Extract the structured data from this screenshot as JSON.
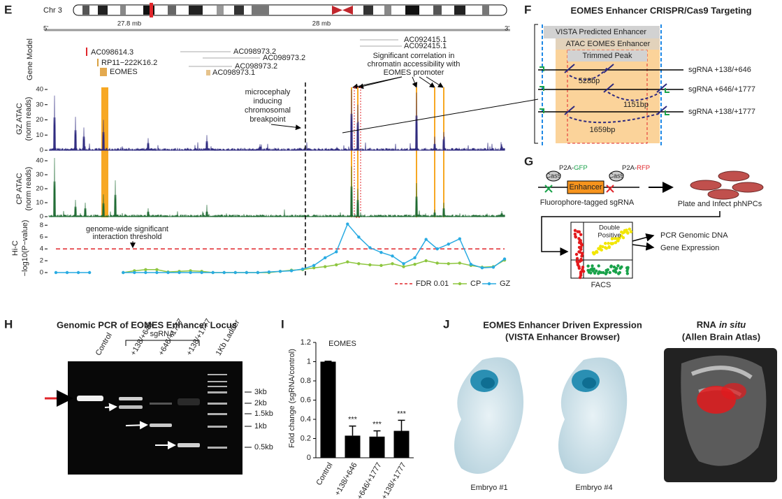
{
  "panel_e": {
    "letter": "E",
    "chromosome": "Chr 3",
    "scale": [
      "27.8 mb",
      "28 mb"
    ],
    "ends": [
      "5'",
      "3'"
    ],
    "gene_model_label": "Gene Model",
    "genes": [
      "AC098614.3",
      "RP11−222K16.2",
      "EOMES",
      "AC098973.2",
      "AC098973.2",
      "AC098973.2",
      "AC098973.1",
      "AC092415.1",
      "AC092415.1"
    ],
    "correlation_note": [
      "Significant correlation in",
      "chromatin accessibility with",
      "EOMES promoter"
    ],
    "breakpoint_note": [
      "microcephaly",
      "inducing",
      "chromosomal",
      "breakpoint"
    ],
    "tracks": [
      {
        "label": [
          "GZ ATAC",
          "(norm reads)"
        ],
        "color": "#2e2a7f"
      },
      {
        "label": [
          "CP ATAC",
          "(norm reads)"
        ],
        "color": "#1f6b33"
      }
    ],
    "atac_yticks": [
      0,
      10,
      20,
      30,
      40
    ]
  },
  "chart_data": [
    {
      "type": "line",
      "ylabel": [
        "Hi-C",
        "−log10(P−value)"
      ],
      "categories": [
        null,
        null,
        null,
        null,
        null,
        null,
        null,
        null,
        null,
        null,
        null,
        null,
        null,
        null,
        null,
        null,
        null,
        null,
        null,
        null,
        null,
        null,
        null,
        null,
        null,
        null,
        null,
        null,
        null,
        null,
        null,
        null,
        null,
        null,
        null,
        null,
        null,
        null,
        null,
        null,
        null
      ],
      "series": [
        {
          "name": "CP",
          "color": "#8dc63f",
          "values": [
            null,
            null,
            null,
            null,
            null,
            null,
            0,
            0.3,
            0.5,
            0.5,
            0.1,
            0.2,
            0.3,
            0.2,
            0,
            0,
            0,
            0,
            0,
            0,
            0.2,
            0.4,
            0.5,
            0.8,
            1,
            1.3,
            1.8,
            1.5,
            1.3,
            1.2,
            1.5,
            1,
            1.4,
            2,
            1.6,
            1.5,
            1.6,
            1.2,
            0.9,
            1,
            2.1
          ]
        },
        {
          "name": "GZ",
          "color": "#29abe2",
          "values": [
            0,
            0,
            0,
            0,
            null,
            null,
            0,
            0,
            0,
            0,
            0,
            0,
            0,
            0,
            0,
            0,
            0,
            0,
            0,
            0.1,
            0.2,
            0.3,
            0.6,
            1.2,
            2.5,
            3.5,
            8.2,
            6,
            4.2,
            3.4,
            2.8,
            1.5,
            2.5,
            5.6,
            4,
            4.8,
            5.7,
            1.4,
            0.8,
            0.9,
            2.3
          ]
        }
      ],
      "threshold": {
        "value": 4,
        "label": "FDR 0.01",
        "color": "#e0262b"
      },
      "annotation": [
        "genome-wide significant",
        "interaction threshold"
      ],
      "ylim": [
        0,
        8.5
      ],
      "yticks": [
        0,
        2,
        4,
        6,
        8
      ]
    },
    {
      "type": "bar",
      "title": "EOMES",
      "ylabel": "Fold change (sgRNA/control)",
      "categories": [
        "Control",
        "+138/+646",
        "+646/+1777",
        "+138/+1777"
      ],
      "values": [
        1,
        0.23,
        0.22,
        0.28
      ],
      "errors": [
        0.005,
        0.1,
        0.06,
        0.11
      ],
      "annotations": [
        null,
        "***",
        "***",
        "***"
      ],
      "color": "#000000",
      "ylim": [
        0,
        1.2
      ],
      "yticks": [
        0,
        0.2,
        0.4,
        0.6,
        0.8,
        1,
        1.2
      ]
    }
  ],
  "panel_f": {
    "letter": "F",
    "title": "EOMES Enhancer CRISPR/Cas9 Targeting",
    "regions": [
      "VISTA Predicted Enhancer",
      "ATAC EOMES Enhancer",
      "Trimmed Peak"
    ],
    "guides": [
      {
        "label": "sgRNA +138/+646",
        "deletion": "528bp"
      },
      {
        "label": "sgRNA +646/+1777",
        "deletion": "1151bp"
      },
      {
        "label": "sgRNA +138/+1777",
        "deletion": "1659bp"
      }
    ]
  },
  "panel_g": {
    "letter": "G",
    "cas9": [
      "Cas9",
      "Cas9"
    ],
    "tags": [
      {
        "prefix": "P2A-",
        "name": "GFP"
      },
      {
        "prefix": "P2A-",
        "name": "RFP"
      }
    ],
    "enhancer": "Enhancer",
    "step1": "Fluorophore-tagged sgRNA",
    "step2": "Plate and Infect phNPCs",
    "facs": "FACS",
    "gate": [
      "Double",
      "Positive"
    ],
    "outputs": [
      "PCR Genomic DNA",
      "Gene Expression"
    ]
  },
  "panel_h": {
    "letter": "H",
    "title": "Genomic PCR of EOMES Enhancer Locus",
    "group": "sgRNA",
    "lanes": [
      "Control",
      "+138/+646",
      "+646/+1777",
      "+138/+1777",
      "1Kb Ladder"
    ],
    "ladder": [
      "3kb",
      "2kb",
      "1.5kb",
      "1kb",
      "0.5kb"
    ]
  },
  "panel_i": {
    "letter": "I"
  },
  "panel_j": {
    "letter": "J",
    "title": [
      "EOMES Enhancer Driven Expression",
      "(VISTA Enhancer Browser)"
    ],
    "insitu_title": {
      "plain": "RNA",
      "italic": "in situ"
    },
    "insitu_subtitle": "(Allen Brain Atlas)",
    "embryos": [
      "Embryo #1",
      "Embryo #4"
    ]
  }
}
